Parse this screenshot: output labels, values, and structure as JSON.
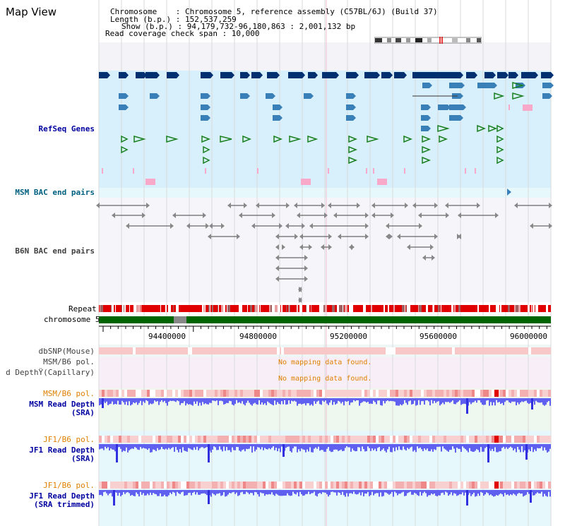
{
  "window": {
    "title": "Map View"
  },
  "header": {
    "chromosome": "Chromosome    : Chromosome 5, reference assembly (C57BL/6J) (Build 37)",
    "length": "Length (b.p.) : 152,537,259",
    "show": "Show (b.p.) : 94,179,732-96,180,863 : 2,001,132 bp",
    "coverage": "Read coverage check span : 10,000"
  },
  "tracks": {
    "refseq": "RefSeq Genes",
    "msm_bac": "MSM BAC end pairs",
    "b6n_bac": "B6N BAC end pairs",
    "repeat": "Repeat",
    "chromosome": "chromosome 5",
    "dbsnp": "dbSNP(Mouse)",
    "msm_pol1": "MSM/B6 pol.",
    "cap_depth": "d DepthŸ(Capillary)",
    "msm_pol2": "MSM/B6 pol.",
    "msm_depth_1": "MSM Read Depth",
    "msm_depth_2": "(SRA)",
    "jf1_pol1": "JF1/B6 pol.",
    "jf1_depth_1": "JF1 Read Depth",
    "jf1_depth_2": "(SRA)",
    "jf1_pol2": "JF1/B6 pol.",
    "jf1_trim_1": "JF1 Read Depth",
    "jf1_trim_2": "(SRA trimmed)"
  },
  "messages": {
    "nomap1": "No mapping data found.",
    "nomap2": "No mapping data found."
  },
  "axis": {
    "ticks": [
      "94400000",
      "94800000",
      "95200000",
      "95600000",
      "96000000"
    ]
  },
  "colors": {
    "refseq_bg": "#d8f0fc",
    "gene_dark": "#003070",
    "gene_mid": "#3a80b8",
    "gene_green": "#1a8020",
    "gene_pink": "#f8a8c8",
    "repeat_red": "#e00000",
    "chrom_green": "#006400",
    "depth_blue": "#6060f0",
    "pol_pink": "#f8c8c8"
  }
}
